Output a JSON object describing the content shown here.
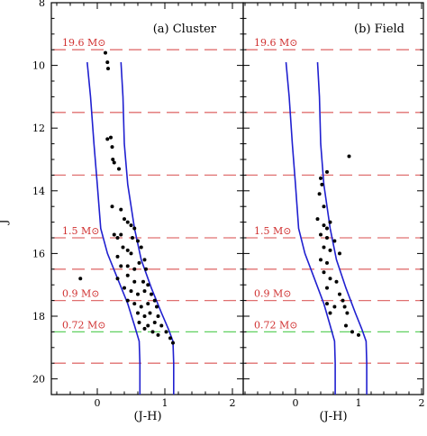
{
  "chart_data": {
    "type": "scatter",
    "y_label": "J",
    "x_label": "(J-H)",
    "xlim": [
      -0.9,
      2.1
    ],
    "ylim": [
      20.5,
      8
    ],
    "y_ticks": [
      8,
      10,
      12,
      14,
      16,
      18,
      20
    ],
    "x_ticks": [
      0,
      1,
      2
    ],
    "colors": {
      "dashed_lines": "#e07070",
      "green_line": "#60d060",
      "mass_labels": "#d03030",
      "tracks": "#2020d0",
      "points": "#000000"
    },
    "mass_lines": [
      {
        "y": 9.5,
        "label": "19.6 M⊙",
        "color": "red"
      },
      {
        "y": 11.5,
        "label": "",
        "color": "red"
      },
      {
        "y": 13.5,
        "label": "",
        "color": "red"
      },
      {
        "y": 15.5,
        "label": "1.5 M⊙",
        "color": "red"
      },
      {
        "y": 16.5,
        "label": "",
        "color": "red"
      },
      {
        "y": 17.5,
        "label": "0.9 M⊙",
        "color": "red"
      },
      {
        "y": 18.5,
        "label": "0.72 M⊙",
        "color": "green"
      },
      {
        "y": 19.5,
        "label": "",
        "color": "red"
      }
    ],
    "tracks": {
      "left": [
        [
          -0.15,
          9.9
        ],
        [
          -0.1,
          11
        ],
        [
          -0.05,
          12.5
        ],
        [
          0,
          13.8
        ],
        [
          0.05,
          15.2
        ],
        [
          0.15,
          16
        ],
        [
          0.3,
          16.8
        ],
        [
          0.45,
          17.6
        ],
        [
          0.55,
          18.3
        ],
        [
          0.62,
          18.8
        ],
        [
          0.63,
          19.5
        ],
        [
          0.63,
          20.5
        ]
      ],
      "right": [
        [
          0.35,
          9.9
        ],
        [
          0.38,
          11
        ],
        [
          0.4,
          12.5
        ],
        [
          0.45,
          13.8
        ],
        [
          0.55,
          15.2
        ],
        [
          0.65,
          16.2
        ],
        [
          0.8,
          17.1
        ],
        [
          0.95,
          17.9
        ],
        [
          1.05,
          18.4
        ],
        [
          1.12,
          18.8
        ],
        [
          1.13,
          19.5
        ],
        [
          1.13,
          20.5
        ]
      ]
    },
    "panels": [
      {
        "title": "(a) Cluster",
        "points": [
          [
            0.12,
            9.6
          ],
          [
            0.15,
            9.9
          ],
          [
            0.16,
            10.1
          ],
          [
            0.15,
            12.35
          ],
          [
            0.2,
            12.3
          ],
          [
            0.22,
            12.6
          ],
          [
            0.23,
            13.0
          ],
          [
            0.25,
            13.1
          ],
          [
            0.32,
            13.3
          ],
          [
            0.22,
            14.5
          ],
          [
            0.35,
            14.6
          ],
          [
            0.4,
            14.9
          ],
          [
            0.45,
            15.0
          ],
          [
            0.5,
            15.1
          ],
          [
            0.55,
            15.2
          ],
          [
            0.25,
            15.4
          ],
          [
            0.3,
            15.5
          ],
          [
            0.35,
            15.4
          ],
          [
            0.52,
            15.5
          ],
          [
            0.6,
            15.6
          ],
          [
            0.38,
            15.8
          ],
          [
            0.45,
            15.9
          ],
          [
            0.65,
            15.8
          ],
          [
            0.3,
            16.1
          ],
          [
            0.5,
            16.0
          ],
          [
            0.7,
            16.2
          ],
          [
            0.35,
            16.4
          ],
          [
            0.45,
            16.4
          ],
          [
            0.55,
            16.5
          ],
          [
            0.62,
            16.3
          ],
          [
            0.72,
            16.5
          ],
          [
            0.3,
            16.8
          ],
          [
            0.45,
            16.7
          ],
          [
            0.55,
            16.9
          ],
          [
            0.68,
            16.9
          ],
          [
            0.75,
            17.0
          ],
          [
            0.4,
            17.1
          ],
          [
            0.5,
            17.2
          ],
          [
            0.6,
            17.3
          ],
          [
            0.7,
            17.2
          ],
          [
            0.8,
            17.3
          ],
          [
            0.85,
            17.5
          ],
          [
            0.45,
            17.5
          ],
          [
            0.55,
            17.6
          ],
          [
            0.65,
            17.7
          ],
          [
            0.75,
            17.6
          ],
          [
            0.88,
            17.7
          ],
          [
            0.6,
            17.9
          ],
          [
            0.7,
            18.0
          ],
          [
            0.78,
            17.9
          ],
          [
            0.9,
            18.0
          ],
          [
            0.62,
            18.2
          ],
          [
            0.75,
            18.3
          ],
          [
            0.85,
            18.2
          ],
          [
            0.95,
            18.3
          ],
          [
            0.82,
            18.5
          ],
          [
            0.9,
            18.6
          ],
          [
            1.02,
            18.5
          ],
          [
            1.08,
            18.7
          ],
          [
            1.12,
            18.85
          ],
          [
            0.7,
            18.4
          ],
          [
            -0.25,
            16.8
          ]
        ]
      },
      {
        "title": "(b) Field",
        "points": [
          [
            0.85,
            12.9
          ],
          [
            0.5,
            13.4
          ],
          [
            0.4,
            13.6
          ],
          [
            0.42,
            13.8
          ],
          [
            0.38,
            14.1
          ],
          [
            0.45,
            14.5
          ],
          [
            0.35,
            14.9
          ],
          [
            0.45,
            15.1
          ],
          [
            0.5,
            15.2
          ],
          [
            0.55,
            15.0
          ],
          [
            0.4,
            15.4
          ],
          [
            0.5,
            15.5
          ],
          [
            0.62,
            15.6
          ],
          [
            0.45,
            15.8
          ],
          [
            0.55,
            15.9
          ],
          [
            0.4,
            16.2
          ],
          [
            0.5,
            16.3
          ],
          [
            0.7,
            16.0
          ],
          [
            0.45,
            16.6
          ],
          [
            0.55,
            16.8
          ],
          [
            0.65,
            16.9
          ],
          [
            0.5,
            17.1
          ],
          [
            0.7,
            17.3
          ],
          [
            0.75,
            17.5
          ],
          [
            0.5,
            17.6
          ],
          [
            0.62,
            17.7
          ],
          [
            0.78,
            17.7
          ],
          [
            0.82,
            17.9
          ],
          [
            0.55,
            17.9
          ],
          [
            0.8,
            18.3
          ],
          [
            0.9,
            18.5
          ],
          [
            1.0,
            18.6
          ]
        ]
      }
    ]
  }
}
